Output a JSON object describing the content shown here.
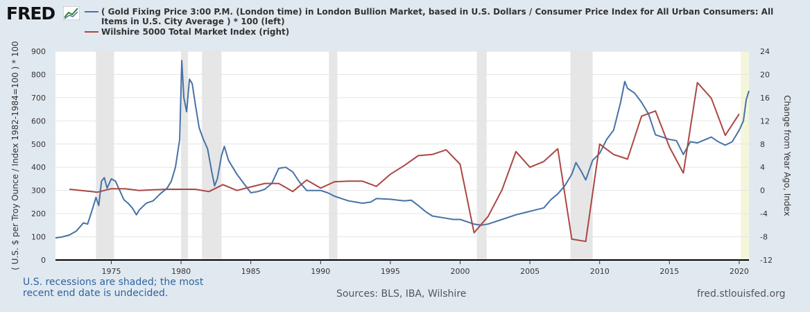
{
  "brand": {
    "logo_text": "FRED",
    "logo_icon": "line-chart-icon"
  },
  "legend": [
    {
      "label": "( Gold Fixing Price 3:00 P.M. (London time) in London Bullion Market, based in U.S. Dollars / Consumer Price Index for All Urban Consumers: All Items in U.S. City Average ) * 100 (left)",
      "color": "#4572a7"
    },
    {
      "label": "Wilshire 5000 Total Market Index (right)",
      "color": "#aa4643"
    }
  ],
  "footer": {
    "recession_note": "U.S. recessions are shaded; the most recent end date is undecided.",
    "sources": "Sources: BLS, IBA, Wilshire",
    "site": "fred.stlouisfed.org"
  },
  "chart_data": {
    "type": "line",
    "ylabel": "( U.S. $ per Troy Ounce / Index 1982-1984=100 ) * 100",
    "y2label": "Change from Year Ago, Index",
    "xlim": [
      1971.0,
      2020.7
    ],
    "ylim": [
      0,
      900
    ],
    "y2lim": [
      -12,
      24
    ],
    "xticks": [
      1975,
      1980,
      1985,
      1990,
      1995,
      2000,
      2005,
      2010,
      2015,
      2020
    ],
    "yticks": [
      0,
      100,
      200,
      300,
      400,
      500,
      600,
      700,
      800,
      900
    ],
    "y2ticks": [
      -12,
      -8,
      -4,
      0,
      4,
      8,
      12,
      16,
      20,
      24
    ],
    "recessions": [
      [
        1973.9,
        1975.2
      ],
      [
        1980.0,
        1980.5
      ],
      [
        1981.5,
        1982.9
      ],
      [
        1990.6,
        1991.2
      ],
      [
        2001.2,
        2001.9
      ],
      [
        2007.9,
        2009.5
      ],
      [
        2020.1,
        2020.7
      ]
    ],
    "series": [
      {
        "name": "( Gold Fixing Price 3:00 P.M. (London time) in London Bullion Market, based in U.S. Dollars / Consumer Price Index for All Urban Consumers: All Items in U.S. City Average ) * 100 (left)",
        "axis": "left",
        "color": "#4572a7",
        "x": [
          1971.0,
          1971.5,
          1972.0,
          1972.5,
          1973.0,
          1973.3,
          1973.6,
          1973.9,
          1974.1,
          1974.3,
          1974.5,
          1974.7,
          1975.0,
          1975.3,
          1975.6,
          1975.9,
          1976.2,
          1976.5,
          1976.8,
          1977.0,
          1977.5,
          1978.0,
          1978.5,
          1979.0,
          1979.3,
          1979.6,
          1979.9,
          1980.05,
          1980.2,
          1980.4,
          1980.6,
          1980.8,
          1981.0,
          1981.3,
          1981.6,
          1981.9,
          1982.2,
          1982.4,
          1982.6,
          1982.9,
          1983.1,
          1983.4,
          1983.7,
          1984.0,
          1984.5,
          1985.0,
          1985.5,
          1986.0,
          1986.5,
          1987.0,
          1987.5,
          1988.0,
          1988.5,
          1989.0,
          1989.5,
          1990.0,
          1990.5,
          1991.0,
          1991.5,
          1992.0,
          1993.0,
          1993.6,
          1994.0,
          1995.0,
          1996.0,
          1996.5,
          1997.0,
          1997.5,
          1998.0,
          1999.0,
          1999.5,
          2000.0,
          2001.0,
          2001.5,
          2002.0,
          2003.0,
          2004.0,
          2005.0,
          2006.0,
          2006.5,
          2007.0,
          2007.5,
          2008.0,
          2008.3,
          2008.7,
          2009.0,
          2009.5,
          2010.0,
          2010.5,
          2011.0,
          2011.5,
          2011.8,
          2012.0,
          2012.5,
          2013.0,
          2013.5,
          2014.0,
          2015.0,
          2015.5,
          2016.0,
          2016.5,
          2017.0,
          2018.0,
          2018.5,
          2019.0,
          2019.5,
          2020.0,
          2020.3,
          2020.5,
          2020.7
        ],
        "y": [
          95,
          100,
          108,
          125,
          160,
          155,
          210,
          270,
          235,
          340,
          355,
          310,
          350,
          340,
          300,
          260,
          245,
          225,
          195,
          215,
          245,
          255,
          285,
          310,
          340,
          400,
          520,
          860,
          700,
          640,
          780,
          760,
          680,
          570,
          520,
          480,
          380,
          320,
          350,
          450,
          490,
          430,
          400,
          370,
          330,
          290,
          295,
          305,
          330,
          395,
          400,
          380,
          335,
          300,
          300,
          300,
          290,
          275,
          265,
          255,
          245,
          250,
          265,
          262,
          255,
          258,
          235,
          210,
          190,
          180,
          175,
          175,
          155,
          150,
          155,
          175,
          195,
          210,
          225,
          260,
          285,
          320,
          370,
          420,
          380,
          345,
          430,
          460,
          520,
          560,
          680,
          770,
          740,
          720,
          680,
          630,
          540,
          520,
          515,
          455,
          510,
          505,
          530,
          510,
          495,
          510,
          560,
          600,
          690,
          730
        ]
      },
      {
        "name": "Wilshire 5000 Total Market Index (right)",
        "axis": "right",
        "color": "#aa4643",
        "x": [
          1972,
          1974,
          1975,
          1976,
          1977,
          1978,
          1979,
          1980,
          1981,
          1982,
          1983,
          1984,
          1985,
          1986,
          1987,
          1988,
          1989,
          1990,
          1991,
          1992,
          1993,
          1994,
          1995,
          1996,
          1997,
          1998,
          1999,
          2000,
          2001,
          2002,
          2003,
          2004,
          2005,
          2006,
          2007,
          2008,
          2009,
          2010,
          2011,
          2012,
          2013,
          2014,
          2015,
          2016,
          2017,
          2018,
          2019,
          2020
        ],
        "y": [
          0.2,
          -0.3,
          0.3,
          0.3,
          0.0,
          0.1,
          0.2,
          0.2,
          0.2,
          -0.2,
          1.0,
          0.0,
          0.6,
          1.2,
          1.2,
          -0.2,
          1.8,
          0.4,
          1.5,
          1.6,
          1.6,
          0.7,
          2.8,
          4.3,
          6.0,
          6.2,
          7.0,
          4.5,
          -7.3,
          -4.5,
          0.1,
          6.7,
          4.0,
          5.0,
          7.2,
          -8.4,
          -8.8,
          8.0,
          6.2,
          5.4,
          12.8,
          13.7,
          7.5,
          3.0,
          18.6,
          15.9,
          9.5,
          13.2
        ]
      }
    ]
  }
}
